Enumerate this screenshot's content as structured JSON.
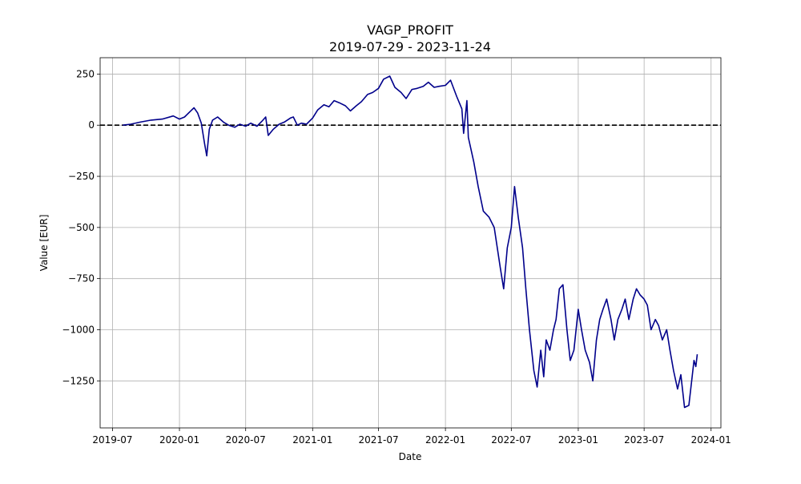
{
  "chart_data": {
    "type": "line",
    "title": "VAGP_PROFIT",
    "subtitle": "2019-07-29 - 2023-11-24",
    "xlabel": "Date",
    "ylabel": "Value [EUR]",
    "x_ticks": [
      "2019-07",
      "2020-01",
      "2020-07",
      "2021-01",
      "2021-07",
      "2022-01",
      "2022-07",
      "2023-01",
      "2023-07",
      "2024-01"
    ],
    "y_ticks": [
      "250",
      "0",
      "−250",
      "−500",
      "−750",
      "−1000",
      "−1250"
    ],
    "xlim": [
      "2019-05-28",
      "2024-01-28"
    ],
    "ylim": [
      -1480,
      330
    ],
    "grid": true,
    "reference_line": {
      "y": 0,
      "style": "dashed",
      "color": "#000000"
    },
    "line_color": "#00008b",
    "series": [
      {
        "x": [
          "2019-07-29",
          "2019-08-20",
          "2019-09-15",
          "2019-10-15",
          "2019-11-15",
          "2019-12-15",
          "2020-01-01",
          "2020-01-15",
          "2020-02-01",
          "2020-02-10",
          "2020-02-20",
          "2020-03-01",
          "2020-03-10",
          "2020-03-16",
          "2020-03-23",
          "2020-04-01",
          "2020-04-15",
          "2020-05-01",
          "2020-05-15",
          "2020-06-01",
          "2020-06-15",
          "2020-07-01",
          "2020-07-15",
          "2020-08-01",
          "2020-08-15",
          "2020-08-25",
          "2020-09-01",
          "2020-09-15",
          "2020-10-01",
          "2020-10-15",
          "2020-11-01",
          "2020-11-09",
          "2020-11-20",
          "2020-12-01",
          "2020-12-15",
          "2021-01-01",
          "2021-01-15",
          "2021-02-01",
          "2021-02-15",
          "2021-03-01",
          "2021-03-15",
          "2021-04-01",
          "2021-04-15",
          "2021-05-01",
          "2021-05-15",
          "2021-06-01",
          "2021-06-15",
          "2021-07-01",
          "2021-07-15",
          "2021-08-01",
          "2021-08-15",
          "2021-09-01",
          "2021-09-15",
          "2021-10-01",
          "2021-10-15",
          "2021-11-01",
          "2021-11-15",
          "2021-12-01",
          "2021-12-15",
          "2022-01-01",
          "2022-01-15",
          "2022-02-01",
          "2022-02-15",
          "2022-02-20",
          "2022-03-01",
          "2022-03-05",
          "2022-03-10",
          "2022-03-20",
          "2022-04-01",
          "2022-04-15",
          "2022-05-01",
          "2022-05-15",
          "2022-06-01",
          "2022-06-10",
          "2022-06-20",
          "2022-07-01",
          "2022-07-10",
          "2022-07-20",
          "2022-08-01",
          "2022-08-10",
          "2022-08-20",
          "2022-09-01",
          "2022-09-10",
          "2022-09-20",
          "2022-09-28",
          "2022-10-05",
          "2022-10-15",
          "2022-10-25",
          "2022-11-01",
          "2022-11-10",
          "2022-11-20",
          "2022-12-01",
          "2022-12-10",
          "2022-12-20",
          "2023-01-01",
          "2023-01-10",
          "2023-01-20",
          "2023-02-01",
          "2023-02-10",
          "2023-02-20",
          "2023-03-01",
          "2023-03-10",
          "2023-03-20",
          "2023-04-01",
          "2023-04-10",
          "2023-04-20",
          "2023-05-01",
          "2023-05-10",
          "2023-05-20",
          "2023-06-01",
          "2023-06-10",
          "2023-06-20",
          "2023-07-01",
          "2023-07-10",
          "2023-07-20",
          "2023-08-01",
          "2023-08-10",
          "2023-08-20",
          "2023-09-01",
          "2023-09-10",
          "2023-09-20",
          "2023-10-01",
          "2023-10-10",
          "2023-10-20",
          "2023-11-01",
          "2023-11-10",
          "2023-11-15",
          "2023-11-20",
          "2023-11-24"
        ],
        "y": [
          0,
          5,
          15,
          25,
          30,
          45,
          30,
          40,
          70,
          85,
          60,
          10,
          -90,
          -150,
          -20,
          25,
          40,
          15,
          0,
          -10,
          5,
          -5,
          10,
          -5,
          20,
          40,
          -50,
          -20,
          5,
          15,
          35,
          40,
          0,
          10,
          5,
          35,
          75,
          100,
          90,
          120,
          110,
          95,
          70,
          95,
          115,
          150,
          160,
          180,
          225,
          240,
          185,
          160,
          130,
          175,
          180,
          190,
          210,
          185,
          190,
          195,
          220,
          140,
          80,
          -40,
          120,
          -60,
          -100,
          -180,
          -300,
          -420,
          -450,
          -500,
          -700,
          -800,
          -600,
          -500,
          -300,
          -450,
          -600,
          -800,
          -1000,
          -1200,
          -1280,
          -1100,
          -1230,
          -1050,
          -1100,
          -1000,
          -950,
          -800,
          -780,
          -1000,
          -1150,
          -1100,
          -900,
          -1000,
          -1100,
          -1160,
          -1250,
          -1050,
          -950,
          -900,
          -850,
          -950,
          -1050,
          -950,
          -900,
          -850,
          -950,
          -850,
          -800,
          -830,
          -850,
          -880,
          -1000,
          -950,
          -980,
          -1050,
          -1000,
          -1100,
          -1200,
          -1290,
          -1220,
          -1380,
          -1370,
          -1230,
          -1150,
          -1180,
          -1120
        ]
      }
    ]
  }
}
